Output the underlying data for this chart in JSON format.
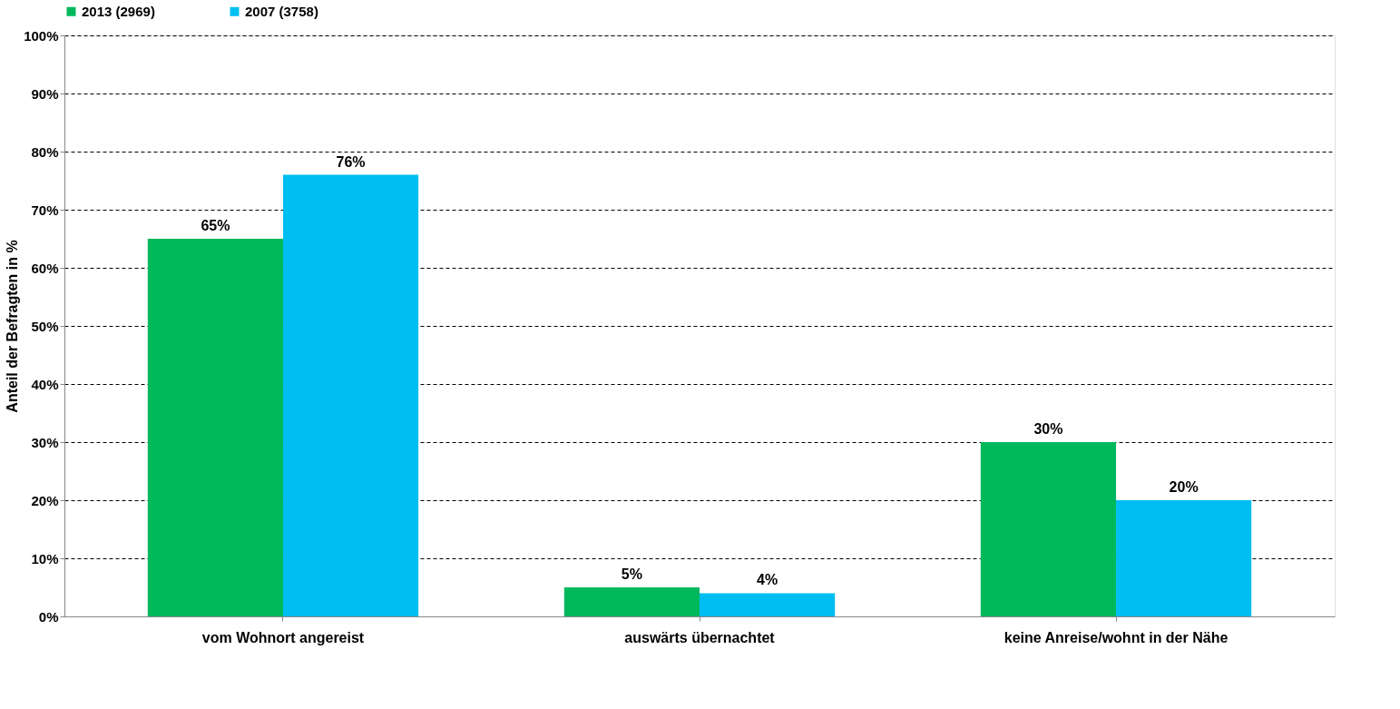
{
  "chart_data": {
    "type": "bar",
    "ylabel": "Anteil der Befragten in %",
    "categories": [
      "vom Wohnort angereist",
      "auswärts übernachtet",
      "keine Anreise/wohnt in der Nähe"
    ],
    "series": [
      {
        "name": "2013 (2969)",
        "color": "#00b85c",
        "values": [
          65,
          5,
          30
        ],
        "value_labels": [
          "65%",
          "5%",
          "30%"
        ]
      },
      {
        "name": "2007 (3758)",
        "color": "#00bef2",
        "values": [
          76,
          4,
          20
        ],
        "value_labels": [
          "76%",
          "4%",
          "20%"
        ]
      }
    ],
    "ylim": [
      0,
      100
    ],
    "yticks": [
      {
        "value": 0,
        "label": "0%"
      },
      {
        "value": 10,
        "label": "10%"
      },
      {
        "value": 20,
        "label": "20%"
      },
      {
        "value": 30,
        "label": "30%"
      },
      {
        "value": 40,
        "label": "40%"
      },
      {
        "value": 50,
        "label": "50%"
      },
      {
        "value": 60,
        "label": "60%"
      },
      {
        "value": 70,
        "label": "70%"
      },
      {
        "value": 80,
        "label": "80%"
      },
      {
        "value": 90,
        "label": "90%"
      },
      {
        "value": 100,
        "label": "100%"
      }
    ],
    "grid": "y",
    "legend": "top"
  }
}
